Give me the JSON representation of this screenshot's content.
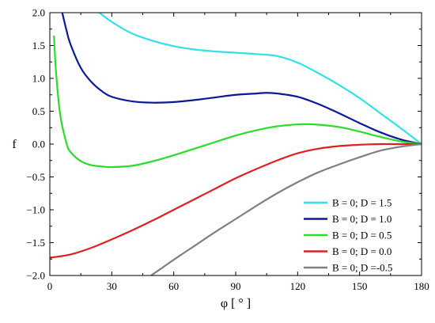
{
  "chart_data": {
    "type": "line",
    "xlabel": "φ [ ° ]",
    "ylabel": "f",
    "xlim": [
      0,
      180
    ],
    "ylim": [
      -2.0,
      2.0
    ],
    "x_ticks": [
      "0",
      "30",
      "60",
      "90",
      "120",
      "150",
      "180"
    ],
    "y_ticks": [
      "−2.0",
      "−1.5",
      "−1.0",
      "−0.5",
      "0.0",
      "0.5",
      "1.0",
      "1.5",
      "2.0"
    ],
    "grid": false,
    "legend_position": "bottom-right",
    "series": [
      {
        "name": "B = 0; D = 1.5",
        "color": "#33e0e8",
        "x": [
          24,
          30,
          40,
          50,
          60,
          70,
          80,
          90,
          100,
          110,
          120,
          130,
          140,
          150,
          160,
          170,
          180
        ],
        "y": [
          2.0,
          1.86,
          1.68,
          1.57,
          1.49,
          1.44,
          1.41,
          1.39,
          1.37,
          1.34,
          1.24,
          1.08,
          0.9,
          0.7,
          0.47,
          0.24,
          0.0
        ]
      },
      {
        "name": "B = 0; D = 1.0",
        "color": "#0a1a96",
        "x": [
          6,
          8,
          10,
          15,
          20,
          25,
          30,
          40,
          50,
          60,
          70,
          80,
          90,
          100,
          105,
          110,
          120,
          130,
          140,
          150,
          160,
          170,
          180
        ],
        "y": [
          2.0,
          1.74,
          1.52,
          1.16,
          0.95,
          0.81,
          0.72,
          0.65,
          0.63,
          0.64,
          0.67,
          0.71,
          0.75,
          0.77,
          0.78,
          0.77,
          0.72,
          0.61,
          0.47,
          0.32,
          0.18,
          0.07,
          0.0
        ]
      },
      {
        "name": "B = 0; D = 0.5",
        "color": "#2bdc2b",
        "x": [
          2,
          3,
          5,
          8,
          10,
          15,
          20,
          25,
          30,
          40,
          50,
          60,
          70,
          80,
          90,
          100,
          110,
          120,
          128,
          140,
          150,
          160,
          170,
          180
        ],
        "y": [
          1.65,
          1.1,
          0.45,
          0.02,
          -0.12,
          -0.26,
          -0.32,
          -0.34,
          -0.35,
          -0.33,
          -0.26,
          -0.17,
          -0.07,
          0.03,
          0.13,
          0.21,
          0.27,
          0.3,
          0.3,
          0.26,
          0.19,
          0.11,
          0.04,
          0.0
        ]
      },
      {
        "name": "B = 0; D = 0.0",
        "color": "#e02020",
        "x": [
          0,
          10,
          20,
          30,
          40,
          50,
          60,
          70,
          80,
          90,
          100,
          110,
          120,
          130,
          140,
          150,
          160,
          170,
          180
        ],
        "y": [
          -1.73,
          -1.68,
          -1.58,
          -1.45,
          -1.31,
          -1.16,
          -1.0,
          -0.84,
          -0.68,
          -0.52,
          -0.38,
          -0.25,
          -0.14,
          -0.07,
          -0.03,
          -0.01,
          0.0,
          0.0,
          0.0
        ]
      },
      {
        "name": "B = 0; D =-0.5",
        "color": "#808080",
        "x": [
          49,
          55,
          60,
          70,
          80,
          90,
          100,
          110,
          120,
          130,
          140,
          150,
          160,
          170,
          180
        ],
        "y": [
          -2.0,
          -1.87,
          -1.76,
          -1.55,
          -1.34,
          -1.14,
          -0.94,
          -0.75,
          -0.58,
          -0.43,
          -0.31,
          -0.2,
          -0.1,
          -0.04,
          0.0
        ]
      }
    ]
  }
}
